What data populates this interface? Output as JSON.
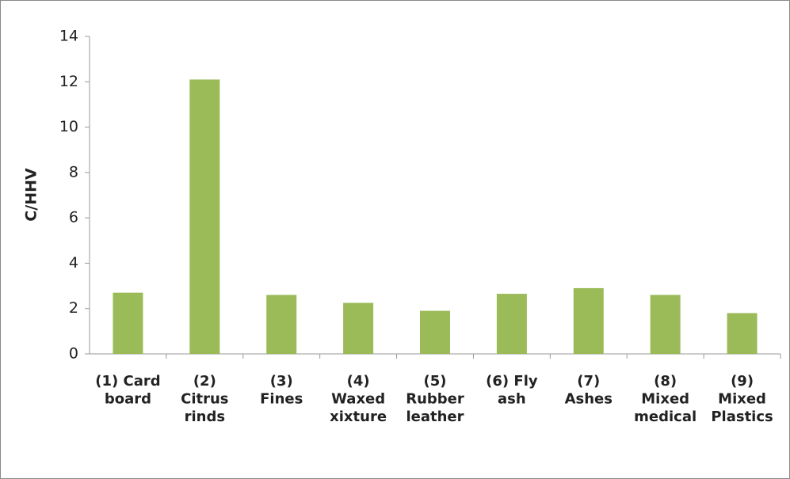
{
  "chart_data": {
    "type": "bar",
    "ylabel": "C/HHV",
    "categories": [
      "(1) Card\nboard",
      "(2)\nCitrus\nrinds",
      "(3)\nFines",
      "(4)\nWaxed\nxixture",
      "(5)\nRubber\nleather",
      "(6) Fly\nash",
      "(7)\nAshes",
      "(8)\nMixed\nmedical",
      "(9)\nMixed\nPlastics"
    ],
    "values": [
      2.7,
      12.1,
      2.6,
      2.25,
      1.9,
      2.65,
      2.9,
      2.6,
      1.8
    ],
    "color": "#9bbb59",
    "ylim": [
      0,
      14
    ],
    "yticks": [
      0,
      2,
      4,
      6,
      8,
      10,
      12,
      14
    ],
    "grid": false
  }
}
